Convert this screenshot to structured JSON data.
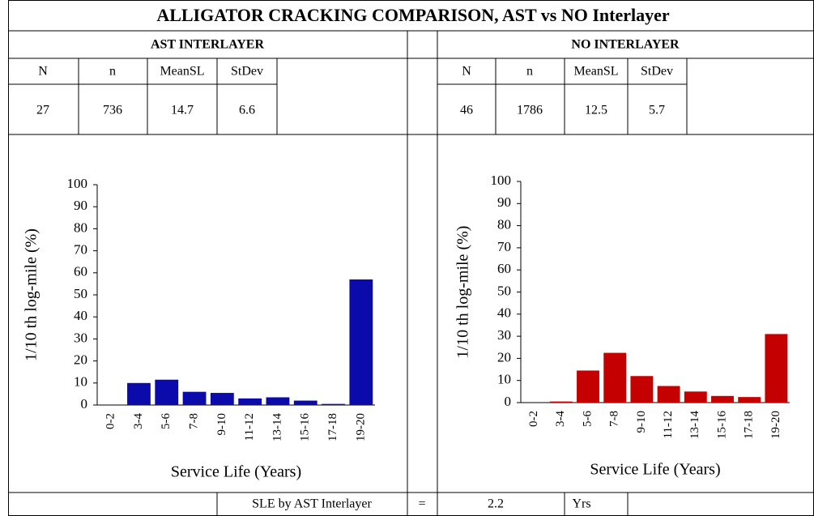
{
  "title": "ALLIGATOR CRACKING COMPARISON, AST vs NO Interlayer",
  "sections": [
    {
      "heading": "AST INTERLAYER",
      "columns": [
        "N",
        "n",
        "MeanSL",
        "StDev"
      ],
      "values": [
        27,
        736,
        14.7,
        6.6
      ]
    },
    {
      "heading": "NO INTERLAYER",
      "columns": [
        "N",
        "n",
        "MeanSL",
        "StDev"
      ],
      "values": [
        46,
        1786,
        12.5,
        5.7
      ]
    }
  ],
  "footer": {
    "label": "SLE by AST Interlayer",
    "equals": "=",
    "value": 2.2,
    "unit": "Yrs"
  },
  "chart_data": [
    {
      "type": "bar",
      "ylabel": "1/10 th log-mile (%)",
      "xlabel": "Service Life (Years)",
      "categories": [
        "0-2",
        "3-4",
        "5-6",
        "7-8",
        "9-10",
        "11-12",
        "13-14",
        "15-16",
        "17-18",
        "19-20"
      ],
      "values": [
        0,
        10,
        11.5,
        6,
        5.5,
        3,
        3.5,
        2,
        0.5,
        57
      ],
      "color": "#0b0bab",
      "ylim": [
        0,
        100
      ],
      "yticks": [
        0,
        10,
        20,
        30,
        40,
        50,
        60,
        70,
        80,
        90,
        100
      ]
    },
    {
      "type": "bar",
      "ylabel": "1/10 th log-mile (%)",
      "xlabel": "Service Life (Years)",
      "categories": [
        "0-2",
        "3-4",
        "5-6",
        "7-8",
        "9-10",
        "11-12",
        "13-14",
        "15-16",
        "17-18",
        "19-20"
      ],
      "values": [
        0,
        0.5,
        14.5,
        22.5,
        12,
        7.5,
        5,
        3,
        2.5,
        31
      ],
      "color": "#c40000",
      "ylim": [
        0,
        100
      ],
      "yticks": [
        0,
        10,
        20,
        30,
        40,
        50,
        60,
        70,
        80,
        90,
        100
      ]
    }
  ]
}
